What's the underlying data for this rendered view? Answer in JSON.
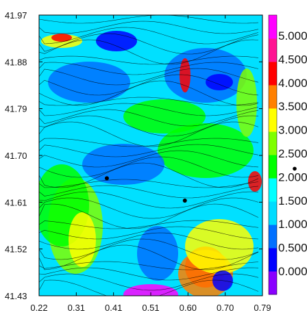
{
  "chart_data": {
    "type": "heatmap",
    "title": "",
    "xlabel": "",
    "ylabel": "",
    "x_ticks": [
      "0.22",
      "0.31",
      "0.41",
      "0.51",
      "0.60",
      "0.70",
      "0.79"
    ],
    "y_ticks": [
      "41.97",
      "41.88",
      "41.79",
      "41.70",
      "41.61",
      "41.52",
      "41.43"
    ],
    "xlim": [
      0.22,
      0.79
    ],
    "ylim": [
      41.43,
      41.97
    ],
    "colorbar": {
      "labels": [
        "0.000",
        "0.500",
        "1.000",
        "1.500",
        "2.000",
        "2.500",
        "3.000",
        "3.500",
        "4.000",
        "4.500",
        "5.000"
      ],
      "range": [
        0,
        5.0
      ],
      "colors": [
        "#8a00ff",
        "#0000ff",
        "#0070ff",
        "#00dcff",
        "#00ffff",
        "#00ff00",
        "#7fff00",
        "#ffff00",
        "#ff8000",
        "#ff0000",
        "#ff1493",
        "#ff00ff"
      ],
      "marker_value": 2.0
    },
    "markers": [
      {
        "x": 0.393,
        "y": 41.656
      },
      {
        "x": 0.592,
        "y": 41.613
      }
    ],
    "overlay": "streamlines",
    "grid": false
  }
}
